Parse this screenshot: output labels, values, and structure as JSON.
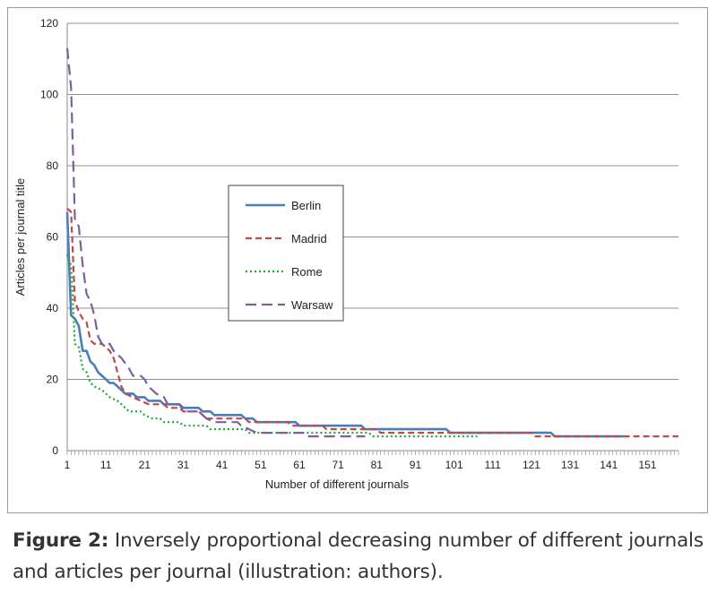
{
  "figure": {
    "caption_label": "Figure 2:",
    "caption_text": " Inversely proportional decreasing number of different journals and articles per journal (illustration: authors)."
  },
  "chart_data": {
    "type": "line",
    "title": "",
    "xlabel": "Number of different journals",
    "ylabel": "Articles per journal title",
    "xlim": [
      1,
      159
    ],
    "ylim": [
      0,
      120
    ],
    "y_ticks": [
      0,
      20,
      40,
      60,
      80,
      100,
      120
    ],
    "x_ticks": [
      1,
      11,
      21,
      31,
      41,
      51,
      61,
      71,
      81,
      91,
      101,
      111,
      121,
      131,
      141,
      151
    ],
    "grid": "horizontal",
    "legend_position": "center-left",
    "series": [
      {
        "name": "Berlin",
        "color": "#4a7ebb",
        "dash": "solid",
        "points": [
          [
            1,
            67
          ],
          [
            2,
            38
          ],
          [
            3,
            37
          ],
          [
            4,
            35
          ],
          [
            5,
            28
          ],
          [
            6,
            28
          ],
          [
            7,
            25
          ],
          [
            8,
            24
          ],
          [
            9,
            22
          ],
          [
            10,
            21
          ],
          [
            11,
            20
          ],
          [
            12,
            19
          ],
          [
            13,
            19
          ],
          [
            14,
            18
          ],
          [
            15,
            17
          ],
          [
            16,
            16
          ],
          [
            18,
            16
          ],
          [
            19,
            15
          ],
          [
            21,
            15
          ],
          [
            22,
            14
          ],
          [
            25,
            14
          ],
          [
            26,
            13
          ],
          [
            30,
            13
          ],
          [
            31,
            12
          ],
          [
            35,
            12
          ],
          [
            36,
            11
          ],
          [
            38,
            11
          ],
          [
            39,
            10
          ],
          [
            46,
            10
          ],
          [
            47,
            9
          ],
          [
            49,
            9
          ],
          [
            50,
            8
          ],
          [
            60,
            8
          ],
          [
            61,
            7
          ],
          [
            77,
            7
          ],
          [
            78,
            6
          ],
          [
            99,
            6
          ],
          [
            100,
            5
          ],
          [
            126,
            5
          ],
          [
            127,
            4
          ],
          [
            145,
            4
          ]
        ]
      },
      {
        "name": "Madrid",
        "color": "#be4b48",
        "dash": "7,4",
        "points": [
          [
            1,
            68
          ],
          [
            2,
            67
          ],
          [
            3,
            42
          ],
          [
            4,
            39
          ],
          [
            5,
            37
          ],
          [
            6,
            36
          ],
          [
            7,
            31
          ],
          [
            8,
            30
          ],
          [
            10,
            30
          ],
          [
            11,
            29
          ],
          [
            12,
            28
          ],
          [
            13,
            26
          ],
          [
            14,
            22
          ],
          [
            15,
            18
          ],
          [
            16,
            16
          ],
          [
            18,
            15
          ],
          [
            20,
            14
          ],
          [
            22,
            13
          ],
          [
            26,
            13
          ],
          [
            27,
            12
          ],
          [
            30,
            12
          ],
          [
            31,
            11
          ],
          [
            35,
            11
          ],
          [
            36,
            10
          ],
          [
            37,
            9
          ],
          [
            47,
            9
          ],
          [
            48,
            8
          ],
          [
            58,
            8
          ],
          [
            59,
            7
          ],
          [
            67,
            7
          ],
          [
            68,
            6
          ],
          [
            81,
            6
          ],
          [
            82,
            5
          ],
          [
            121,
            5
          ],
          [
            122,
            4
          ],
          [
            159,
            4
          ]
        ]
      },
      {
        "name": "Rome",
        "color": "#1ea836",
        "dash": "2,3",
        "points": [
          [
            1,
            55
          ],
          [
            2,
            52
          ],
          [
            3,
            30
          ],
          [
            4,
            29
          ],
          [
            5,
            23
          ],
          [
            6,
            22
          ],
          [
            7,
            19
          ],
          [
            8,
            18
          ],
          [
            10,
            17
          ],
          [
            12,
            15
          ],
          [
            14,
            14
          ],
          [
            15,
            13
          ],
          [
            16,
            12
          ],
          [
            17,
            11
          ],
          [
            20,
            11
          ],
          [
            21,
            10
          ],
          [
            23,
            9
          ],
          [
            25,
            9
          ],
          [
            26,
            8
          ],
          [
            30,
            8
          ],
          [
            31,
            7
          ],
          [
            37,
            7
          ],
          [
            38,
            6
          ],
          [
            47,
            6
          ],
          [
            48,
            5
          ],
          [
            79,
            5
          ],
          [
            80,
            4
          ],
          [
            107,
            4
          ]
        ]
      },
      {
        "name": "Warsaw",
        "color": "#7d5fa0",
        "dash": "12,6",
        "points": [
          [
            1,
            113
          ],
          [
            2,
            102
          ],
          [
            3,
            65
          ],
          [
            4,
            63
          ],
          [
            5,
            52
          ],
          [
            6,
            44
          ],
          [
            7,
            42
          ],
          [
            8,
            38
          ],
          [
            9,
            32
          ],
          [
            10,
            30
          ],
          [
            12,
            30
          ],
          [
            13,
            28
          ],
          [
            15,
            26
          ],
          [
            17,
            23
          ],
          [
            18,
            21
          ],
          [
            20,
            21
          ],
          [
            21,
            20
          ],
          [
            22,
            18
          ],
          [
            24,
            16
          ],
          [
            26,
            15
          ],
          [
            27,
            13
          ],
          [
            30,
            13
          ],
          [
            31,
            11
          ],
          [
            35,
            11
          ],
          [
            36,
            10
          ],
          [
            37,
            9
          ],
          [
            39,
            8
          ],
          [
            45,
            8
          ],
          [
            46,
            7
          ],
          [
            48,
            6
          ],
          [
            50,
            5
          ],
          [
            62,
            5
          ],
          [
            63,
            4
          ],
          [
            78,
            4
          ]
        ]
      }
    ]
  }
}
